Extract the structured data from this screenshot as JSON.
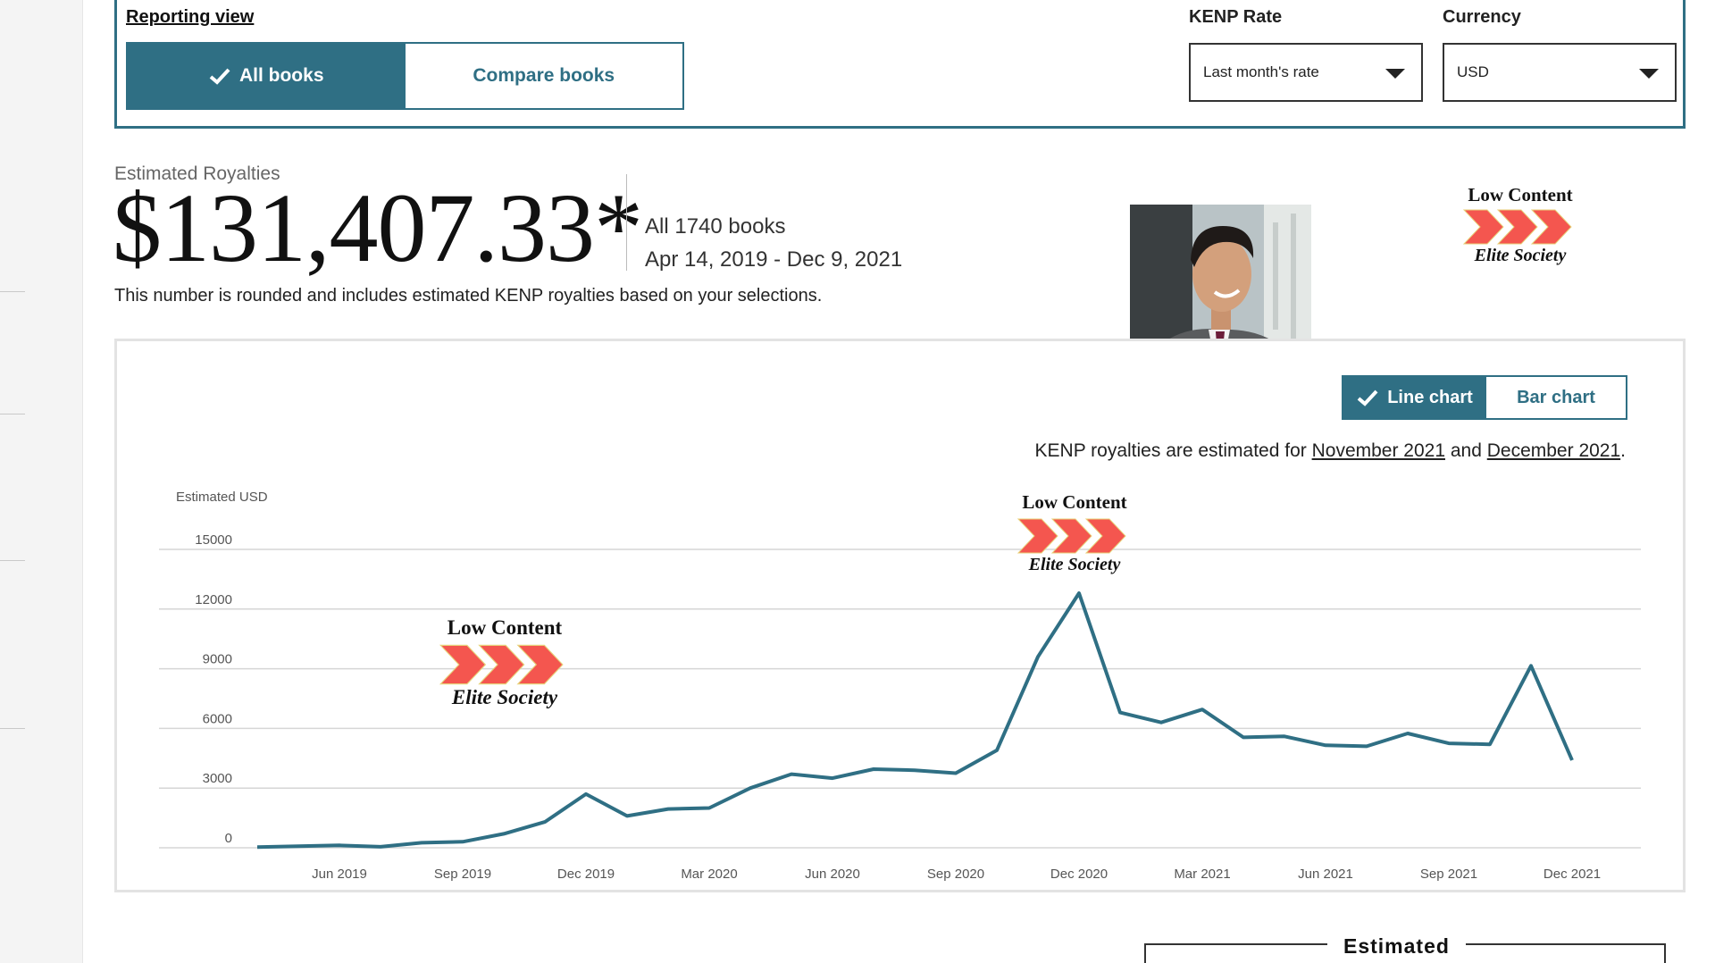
{
  "reporting": {
    "label": "Reporting view",
    "all_books": "All books",
    "compare_books": "Compare books",
    "kenp_label": "KENP Rate",
    "kenp_value": "Last month's rate",
    "currency_label": "Currency",
    "currency_value": "USD"
  },
  "summary": {
    "label": "Estimated Royalties",
    "amount": "$131,407.33*",
    "books": "All 1740 books",
    "date_range": "Apr 14, 2019 - Dec 9, 2021",
    "note": "This number is rounded and includes estimated KENP royalties based on your selections."
  },
  "badges": {
    "top": "Low Content",
    "bottom": "Elite Society",
    "chevron_color": "#f4564f"
  },
  "chart_toggle": {
    "line": "Line chart",
    "bar": "Bar chart"
  },
  "kenp_note": {
    "prefix": "KENP royalties are estimated for ",
    "link1": "November 2021",
    "mid": " and ",
    "link2": "December 2021",
    "suffix": "."
  },
  "chart_data": {
    "type": "line",
    "ylabel": "Estimated USD",
    "ylim": [
      0,
      15000
    ],
    "y_ticks": [
      "15000",
      "12000",
      "9000",
      "6000",
      "3000",
      "0"
    ],
    "x_tick_labels": [
      "Jun 2019",
      "Sep 2019",
      "Dec 2019",
      "Mar 2020",
      "Jun 2020",
      "Sep 2020",
      "Dec 2020",
      "Mar 2021",
      "Jun 2021",
      "Sep 2021",
      "Dec 2021"
    ],
    "x": [
      "Apr 2019",
      "May 2019",
      "Jun 2019",
      "Jul 2019",
      "Aug 2019",
      "Sep 2019",
      "Oct 2019",
      "Nov 2019",
      "Dec 2019",
      "Jan 2020",
      "Feb 2020",
      "Mar 2020",
      "Apr 2020",
      "May 2020",
      "Jun 2020",
      "Jul 2020",
      "Aug 2020",
      "Sep 2020",
      "Oct 2020",
      "Nov 2020",
      "Dec 2020",
      "Jan 2021",
      "Feb 2021",
      "Mar 2021",
      "Apr 2021",
      "May 2021",
      "Jun 2021",
      "Jul 2021",
      "Aug 2021",
      "Sep 2021",
      "Oct 2021",
      "Nov 2021",
      "Dec 2021"
    ],
    "values": [
      30,
      80,
      120,
      50,
      250,
      300,
      700,
      1300,
      2700,
      1600,
      1950,
      2000,
      3000,
      3700,
      3500,
      3950,
      3900,
      3750,
      4900,
      9600,
      12800,
      6800,
      6300,
      6950,
      5550,
      5600,
      5150,
      5100,
      5750,
      5250,
      5200,
      9150,
      4400
    ],
    "line_color": "#2f6f84",
    "grid": true
  }
}
